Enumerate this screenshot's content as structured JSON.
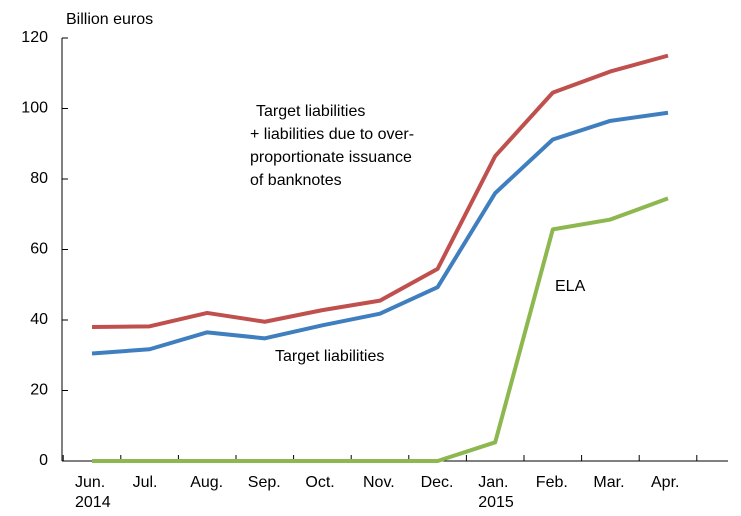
{
  "chart_data": {
    "type": "line",
    "ylabel": "Billion euros",
    "categories": [
      "Jun.\n2014",
      "Jul.",
      "Aug.",
      "Sep.",
      "Oct.",
      "Nov.",
      "Dec.",
      "Jan.\n2015",
      "Feb.",
      "Mar.",
      "Apr."
    ],
    "series": [
      {
        "name": "Target liabilities\n+ liabilities due to over-\nproportionate issuance\nof banknotes",
        "color": "#c0504d",
        "values": [
          38,
          38.2,
          42,
          39.5,
          42.8,
          45.5,
          54.5,
          86.5,
          104.5,
          110.5,
          115
        ]
      },
      {
        "name": "Target liabilities",
        "color": "#3f7fbf",
        "values": [
          30.5,
          31.7,
          36.5,
          34.8,
          38.5,
          41.8,
          49.3,
          76,
          91.2,
          96.5,
          98.8
        ]
      },
      {
        "name": "ELA",
        "color": "#8db84f",
        "values": [
          0,
          0,
          0,
          0,
          0,
          0,
          0,
          5.3,
          65.7,
          68.5,
          74.5
        ]
      }
    ],
    "ylim": [
      0,
      120
    ],
    "yticks": [
      0,
      20,
      40,
      60,
      80,
      100,
      120
    ],
    "grid": false
  }
}
